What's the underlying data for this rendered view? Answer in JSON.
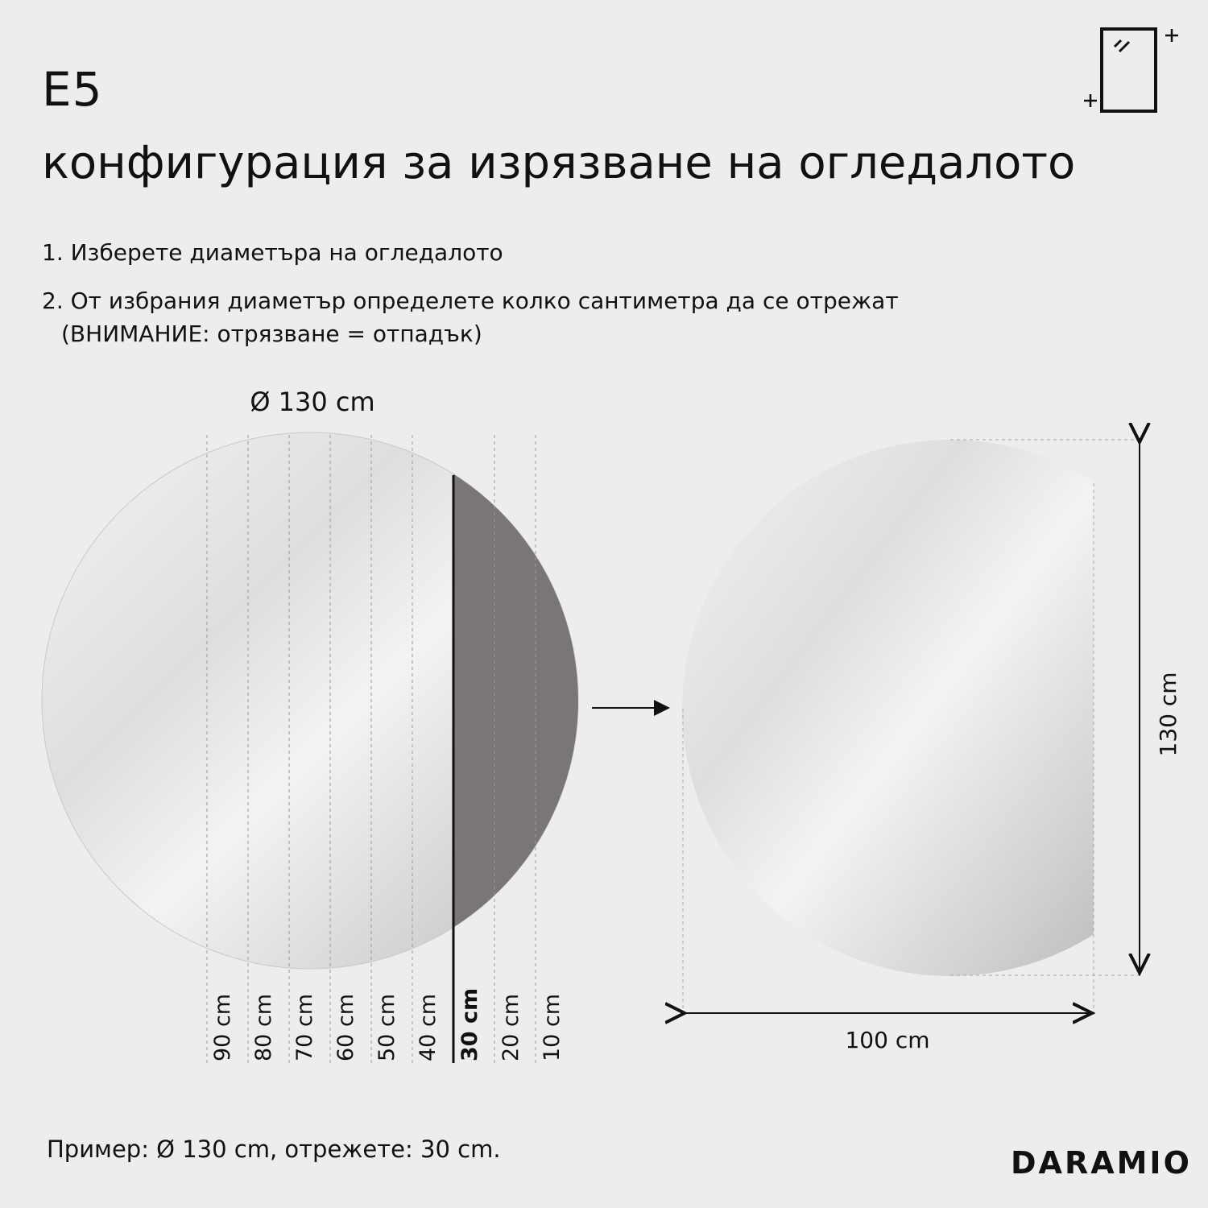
{
  "header": {
    "code": "E5",
    "title": "конфигурация за изрязване на огледалото"
  },
  "steps": [
    "1. Изберете диаметъра на огледалото",
    "2. От избрания диаметър определете колко сантиметра да се отрежат",
    "(ВНИМАНИЕ: отрязване = отпадък)"
  ],
  "diagram": {
    "diameter_label": "Ø 130 cm",
    "cut_lines": [
      "90 cm",
      "80 cm",
      "70 cm",
      "60 cm",
      "50 cm",
      "40 cm",
      "30 cm",
      "20 cm",
      "10 cm"
    ],
    "selected_cut": "30 cm",
    "result_width": "100 cm",
    "result_height": "130 cm"
  },
  "footer": {
    "example": "Пример: Ø 130 cm, отрежете: 30 cm."
  },
  "brand": {
    "logo": "DARAMIO"
  },
  "colors": {
    "background": "#ededed",
    "cut_area": "#7a7676",
    "text": "#111111"
  }
}
